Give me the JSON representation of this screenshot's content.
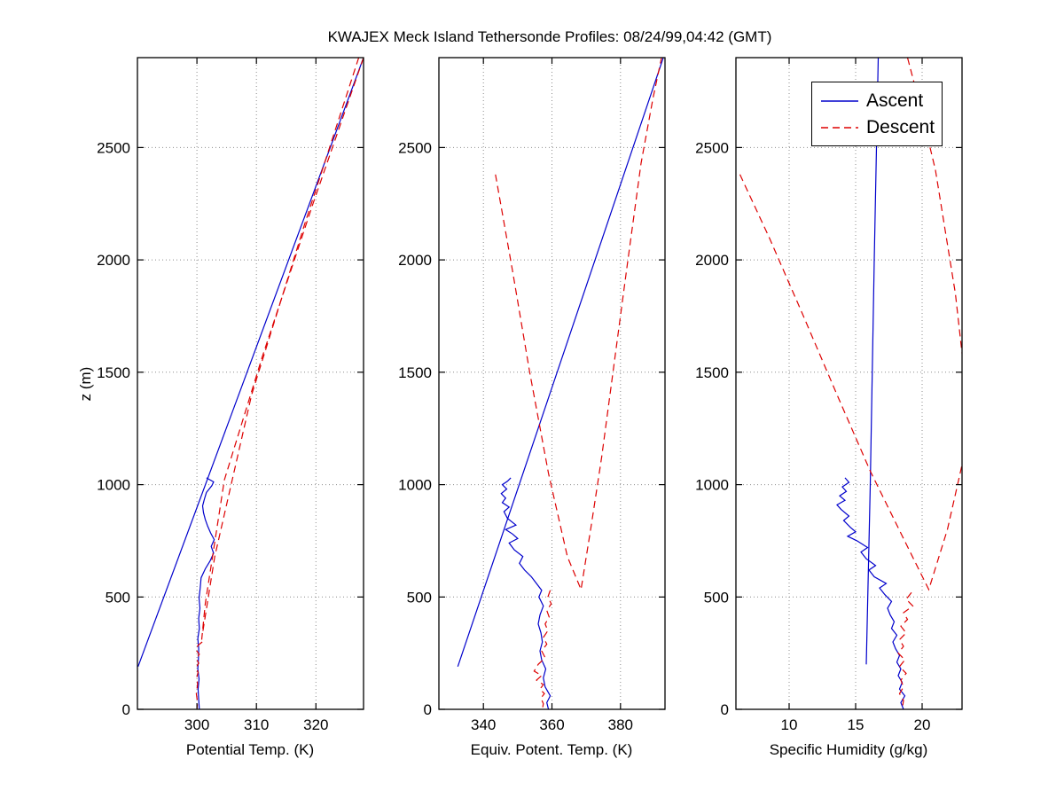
{
  "title": "KWAJEX Meck Island Tethersonde Profiles: 08/24/99,04:42 (GMT)",
  "legend": {
    "items": [
      {
        "label": "Ascent",
        "color": "#0000cc",
        "dash": "solid"
      },
      {
        "label": "Descent",
        "color": "#dd0000",
        "dash": "dashed"
      }
    ]
  },
  "chart_data": [
    {
      "type": "line",
      "xlabel": "Potential Temp. (K)",
      "ylabel": "z (m)",
      "xlim": [
        290,
        328
      ],
      "ylim": [
        0,
        2900
      ],
      "xticks": [
        300,
        310,
        320
      ],
      "yticks": [
        0,
        500,
        1000,
        1500,
        2000,
        2500
      ],
      "grid": true,
      "series": [
        {
          "name": "Ascent",
          "color": "#0000cc",
          "style": "solid",
          "segments": [
            [
              [
                300.4,
                0
              ],
              [
                300.3,
                45
              ],
              [
                300.2,
                90
              ],
              [
                300.35,
                135
              ],
              [
                300.15,
                180
              ],
              [
                300.25,
                225
              ],
              [
                300.3,
                270
              ],
              [
                300.15,
                315
              ],
              [
                300.4,
                360
              ],
              [
                300.3,
                405
              ],
              [
                300.5,
                450
              ],
              [
                300.35,
                495
              ],
              [
                300.55,
                540
              ],
              [
                300.7,
                585
              ],
              [
                301.4,
                625
              ],
              [
                302.2,
                660
              ],
              [
                302.8,
                695
              ],
              [
                302.4,
                725
              ],
              [
                302.9,
                755
              ],
              [
                302.3,
                785
              ],
              [
                301.8,
                815
              ],
              [
                301.4,
                845
              ],
              [
                301.1,
                875
              ],
              [
                300.95,
                905
              ],
              [
                301.25,
                935
              ],
              [
                301.6,
                965
              ],
              [
                302.5,
                995
              ],
              [
                302.8,
                1012
              ],
              [
                301.6,
                1030
              ]
            ],
            [
              [
                290.1,
                190
              ],
              [
                328.0,
                2900
              ]
            ]
          ]
        },
        {
          "name": "Descent",
          "color": "#dd0000",
          "style": "dashed",
          "segments": [
            [
              [
                328.0,
                2900
              ],
              [
                319.5,
                2250
              ],
              [
                311.0,
                1570
              ],
              [
                304.6,
                1020
              ],
              [
                301.4,
                470
              ],
              [
                300.8,
                310
              ]
            ],
            [
              [
                327.2,
                2900
              ],
              [
                318.0,
                2150
              ],
              [
                309.2,
                1400
              ],
              [
                303.0,
                680
              ],
              [
                300.9,
                330
              ]
            ],
            [
              [
                300.9,
                300
              ],
              [
                300.2,
                285
              ],
              [
                299.8,
                265
              ],
              [
                300.4,
                245
              ],
              [
                299.9,
                225
              ],
              [
                300.3,
                205
              ],
              [
                299.85,
                185
              ],
              [
                300.2,
                165
              ],
              [
                300.0,
                145
              ],
              [
                300.1,
                110
              ],
              [
                299.9,
                70
              ],
              [
                300.1,
                30
              ],
              [
                300.0,
                0
              ]
            ]
          ]
        }
      ]
    },
    {
      "type": "line",
      "xlabel": "Equiv. Potent. Temp. (K)",
      "ylabel": "",
      "xlim": [
        327,
        393
      ],
      "ylim": [
        0,
        2900
      ],
      "xticks": [
        340,
        360,
        380
      ],
      "yticks": [
        0,
        500,
        1000,
        1500,
        2000,
        2500
      ],
      "grid": true,
      "series": [
        {
          "name": "Ascent",
          "color": "#0000cc",
          "style": "solid",
          "segments": [
            [
              [
                359.0,
                0
              ],
              [
                358.5,
                30
              ],
              [
                359.5,
                60
              ],
              [
                358.0,
                100
              ],
              [
                357.5,
                140
              ],
              [
                358.2,
                180
              ],
              [
                357.0,
                220
              ],
              [
                356.5,
                260
              ],
              [
                357.2,
                300
              ],
              [
                356.8,
                340
              ],
              [
                356.0,
                380
              ],
              [
                356.5,
                420
              ],
              [
                357.5,
                460
              ],
              [
                356.2,
                500
              ],
              [
                357.0,
                530
              ],
              [
                355.5,
                560
              ],
              [
                354.0,
                590
              ],
              [
                352.0,
                620
              ],
              [
                350.5,
                650
              ],
              [
                351.5,
                680
              ],
              [
                349.0,
                710
              ],
              [
                347.5,
                740
              ],
              [
                350.0,
                760
              ],
              [
                348.5,
                780
              ],
              [
                346.5,
                800
              ],
              [
                349.5,
                820
              ],
              [
                347.0,
                850
              ],
              [
                346.0,
                880
              ],
              [
                347.5,
                900
              ],
              [
                345.5,
                920
              ],
              [
                346.5,
                940
              ],
              [
                345.2,
                960
              ],
              [
                346.8,
                980
              ],
              [
                345.5,
                1000
              ],
              [
                347.0,
                1015
              ],
              [
                348.0,
                1030
              ]
            ],
            [
              [
                332.5,
                190
              ],
              [
                392.5,
                2900
              ]
            ]
          ]
        },
        {
          "name": "Descent",
          "color": "#dd0000",
          "style": "dashed",
          "segments": [
            [
              [
                343.5,
                2380
              ],
              [
                348.5,
                1950
              ],
              [
                353.5,
                1500
              ],
              [
                359.0,
                1050
              ],
              [
                364.5,
                680
              ],
              [
                368.5,
                533
              ],
              [
                371.5,
                820
              ],
              [
                374.5,
                1120
              ],
              [
                378.0,
                1520
              ],
              [
                382.0,
                1980
              ],
              [
                386.0,
                2430
              ],
              [
                389.5,
                2720
              ],
              [
                392.0,
                2900
              ]
            ],
            [
              [
                359.5,
                530
              ],
              [
                358.8,
                500
              ],
              [
                359.8,
                470
              ],
              [
                358.5,
                440
              ],
              [
                359.2,
                410
              ],
              [
                358.0,
                380
              ],
              [
                358.8,
                350
              ],
              [
                357.5,
                320
              ],
              [
                358.5,
                290
              ],
              [
                357.0,
                260
              ],
              [
                358.0,
                230
              ],
              [
                356.0,
                200
              ],
              [
                354.8,
                170
              ],
              [
                357.0,
                150
              ],
              [
                355.5,
                130
              ],
              [
                357.5,
                110
              ],
              [
                356.5,
                90
              ],
              [
                357.8,
                70
              ],
              [
                356.8,
                50
              ],
              [
                357.5,
                25
              ],
              [
                357.2,
                0
              ]
            ]
          ]
        }
      ]
    },
    {
      "type": "line",
      "xlabel": "Specific Humidity (g/kg)",
      "ylabel": "",
      "xlim": [
        6,
        23
      ],
      "ylim": [
        0,
        2900
      ],
      "xticks": [
        10,
        15,
        20
      ],
      "yticks": [
        0,
        500,
        1000,
        1500,
        2000,
        2500
      ],
      "grid": true,
      "series": [
        {
          "name": "Ascent",
          "color": "#0000cc",
          "style": "solid",
          "segments": [
            [
              [
                18.6,
                0
              ],
              [
                18.4,
                30
              ],
              [
                18.7,
                60
              ],
              [
                18.3,
                90
              ],
              [
                18.5,
                120
              ],
              [
                18.2,
                150
              ],
              [
                18.4,
                180
              ],
              [
                18.1,
                210
              ],
              [
                18.3,
                240
              ],
              [
                18.0,
                270
              ],
              [
                17.8,
                300
              ],
              [
                18.1,
                330
              ],
              [
                17.7,
                360
              ],
              [
                17.9,
                390
              ],
              [
                17.6,
                420
              ],
              [
                17.4,
                450
              ],
              [
                17.7,
                480
              ],
              [
                17.2,
                510
              ],
              [
                16.8,
                540
              ],
              [
                17.3,
                560
              ],
              [
                16.4,
                590
              ],
              [
                16.0,
                620
              ],
              [
                16.5,
                640
              ],
              [
                15.8,
                670
              ],
              [
                15.4,
                700
              ],
              [
                15.9,
                720
              ],
              [
                15.1,
                750
              ],
              [
                14.4,
                770
              ],
              [
                15.0,
                790
              ],
              [
                14.6,
                810
              ],
              [
                14.1,
                840
              ],
              [
                14.5,
                860
              ],
              [
                13.9,
                890
              ],
              [
                13.6,
                910
              ],
              [
                14.2,
                930
              ],
              [
                13.8,
                950
              ],
              [
                14.3,
                970
              ],
              [
                14.0,
                990
              ],
              [
                14.5,
                1010
              ],
              [
                14.2,
                1030
              ]
            ],
            [
              [
                15.8,
                200
              ],
              [
                16.1,
                1000
              ],
              [
                16.4,
                2000
              ],
              [
                16.7,
                2900
              ]
            ]
          ]
        },
        {
          "name": "Descent",
          "color": "#dd0000",
          "style": "dashed",
          "segments": [
            [
              [
                6.3,
                2380
              ],
              [
                8.5,
                2100
              ],
              [
                11.0,
                1760
              ],
              [
                13.6,
                1400
              ],
              [
                16.1,
                1060
              ],
              [
                18.6,
                760
              ],
              [
                20.5,
                533
              ],
              [
                21.9,
                800
              ],
              [
                23.2,
                1140
              ],
              [
                23.5,
                1320
              ],
              [
                22.5,
                1850
              ],
              [
                21.0,
                2400
              ],
              [
                19.7,
                2720
              ],
              [
                18.9,
                2900
              ]
            ],
            [
              [
                19.2,
                520
              ],
              [
                18.8,
                490
              ],
              [
                19.3,
                460
              ],
              [
                18.6,
                430
              ],
              [
                18.9,
                400
              ],
              [
                18.4,
                370
              ],
              [
                18.8,
                340
              ],
              [
                18.3,
                310
              ],
              [
                18.6,
                280
              ],
              [
                18.2,
                250
              ],
              [
                18.7,
                220
              ],
              [
                18.3,
                190
              ],
              [
                18.8,
                160
              ],
              [
                18.4,
                130
              ],
              [
                18.6,
                100
              ],
              [
                18.3,
                70
              ],
              [
                18.6,
                40
              ],
              [
                18.5,
                0
              ]
            ]
          ]
        }
      ]
    }
  ]
}
